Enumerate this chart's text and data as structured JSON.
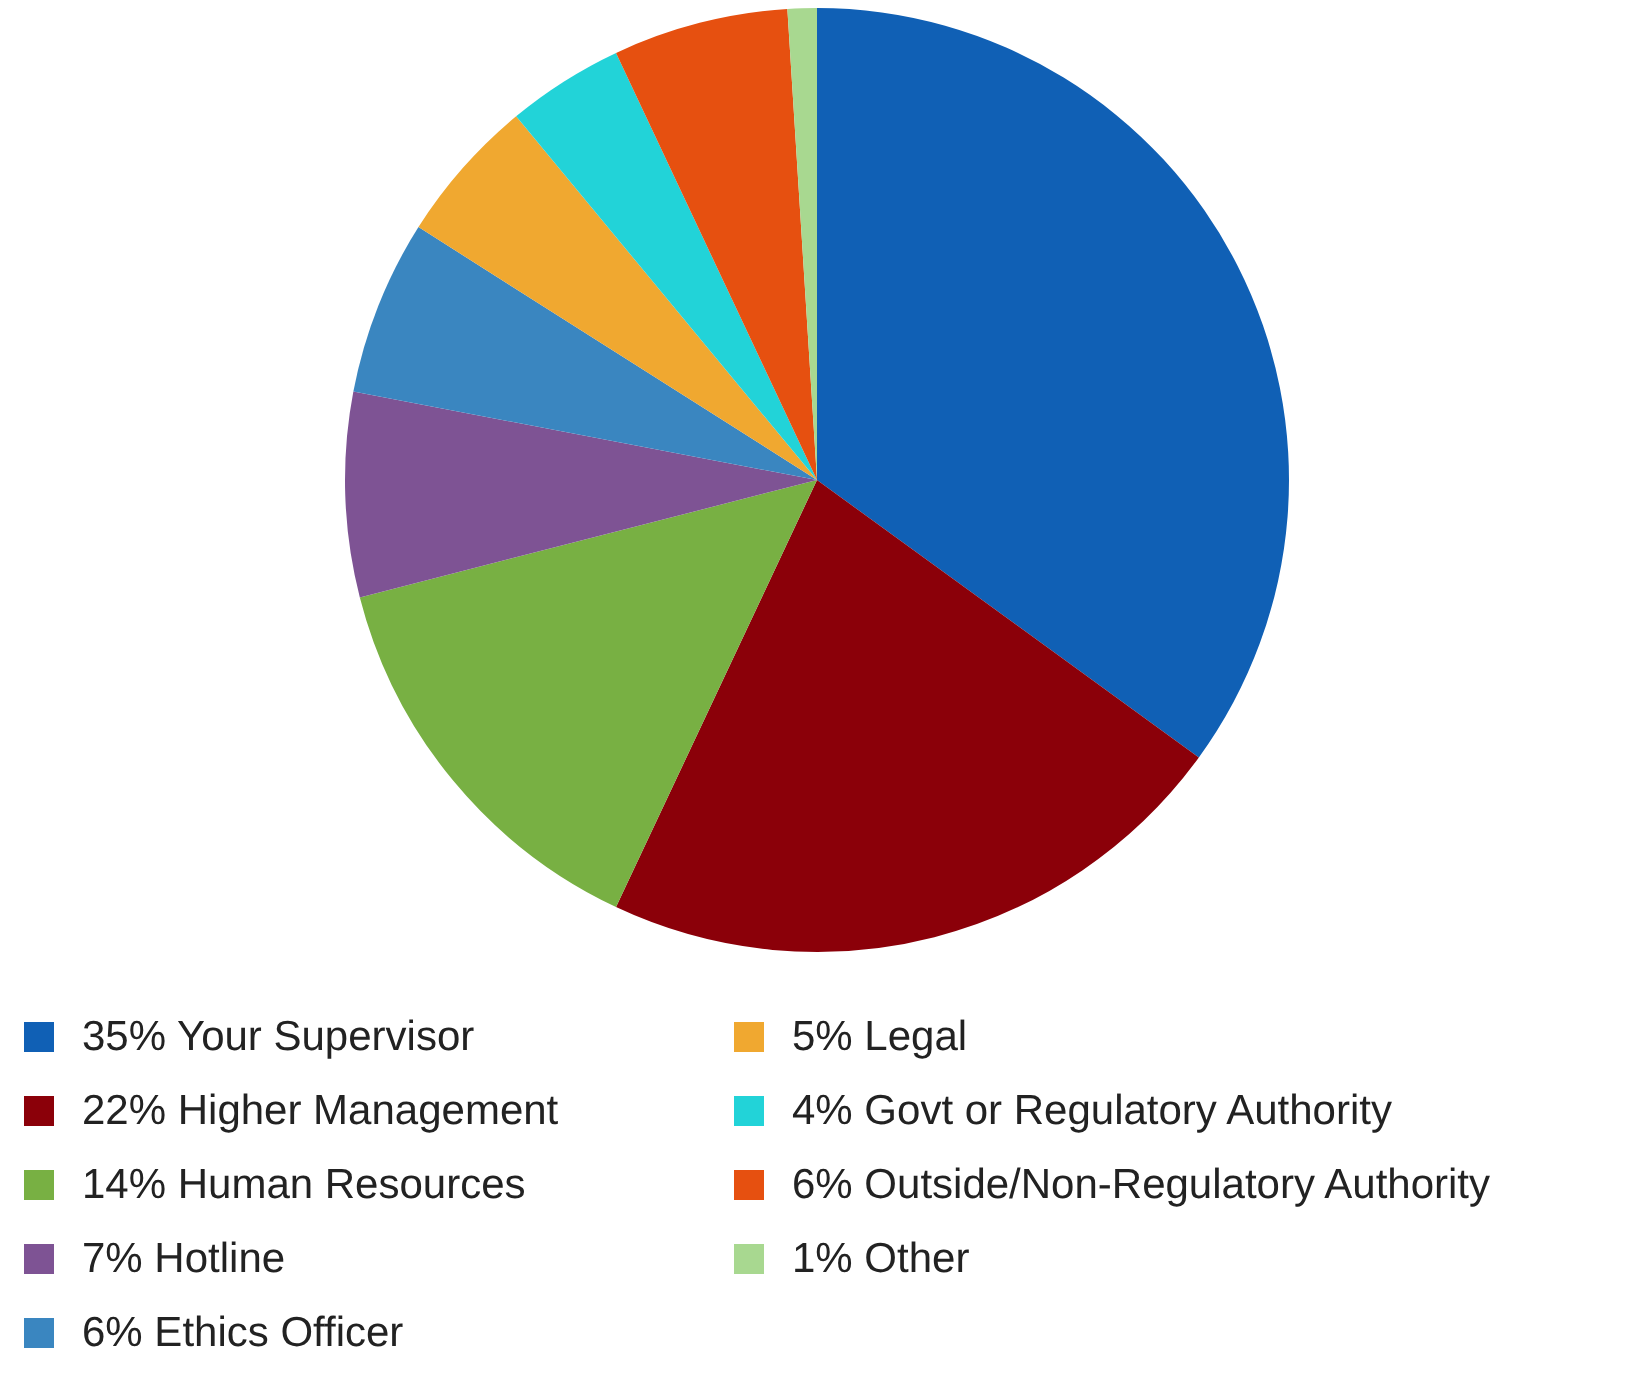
{
  "chart_data": {
    "type": "pie",
    "categories": [
      "35% Your Supervisor",
      "22% Higher Management",
      "14% Human Resources",
      "7% Hotline",
      "6% Ethics Officer",
      "5% Legal",
      "4% Govt or Regulatory Authority",
      "6% Outside/Non-Regulatory Authority",
      "1% Other"
    ],
    "values": [
      35,
      22,
      14,
      7,
      6,
      5,
      4,
      6,
      1
    ],
    "colors": [
      "#1060b5",
      "#8b0009",
      "#78b043",
      "#7e5394",
      "#3a86c0",
      "#f0a830",
      "#22d3d8",
      "#e65010",
      "#a8d890"
    ],
    "legend": "bottom"
  }
}
